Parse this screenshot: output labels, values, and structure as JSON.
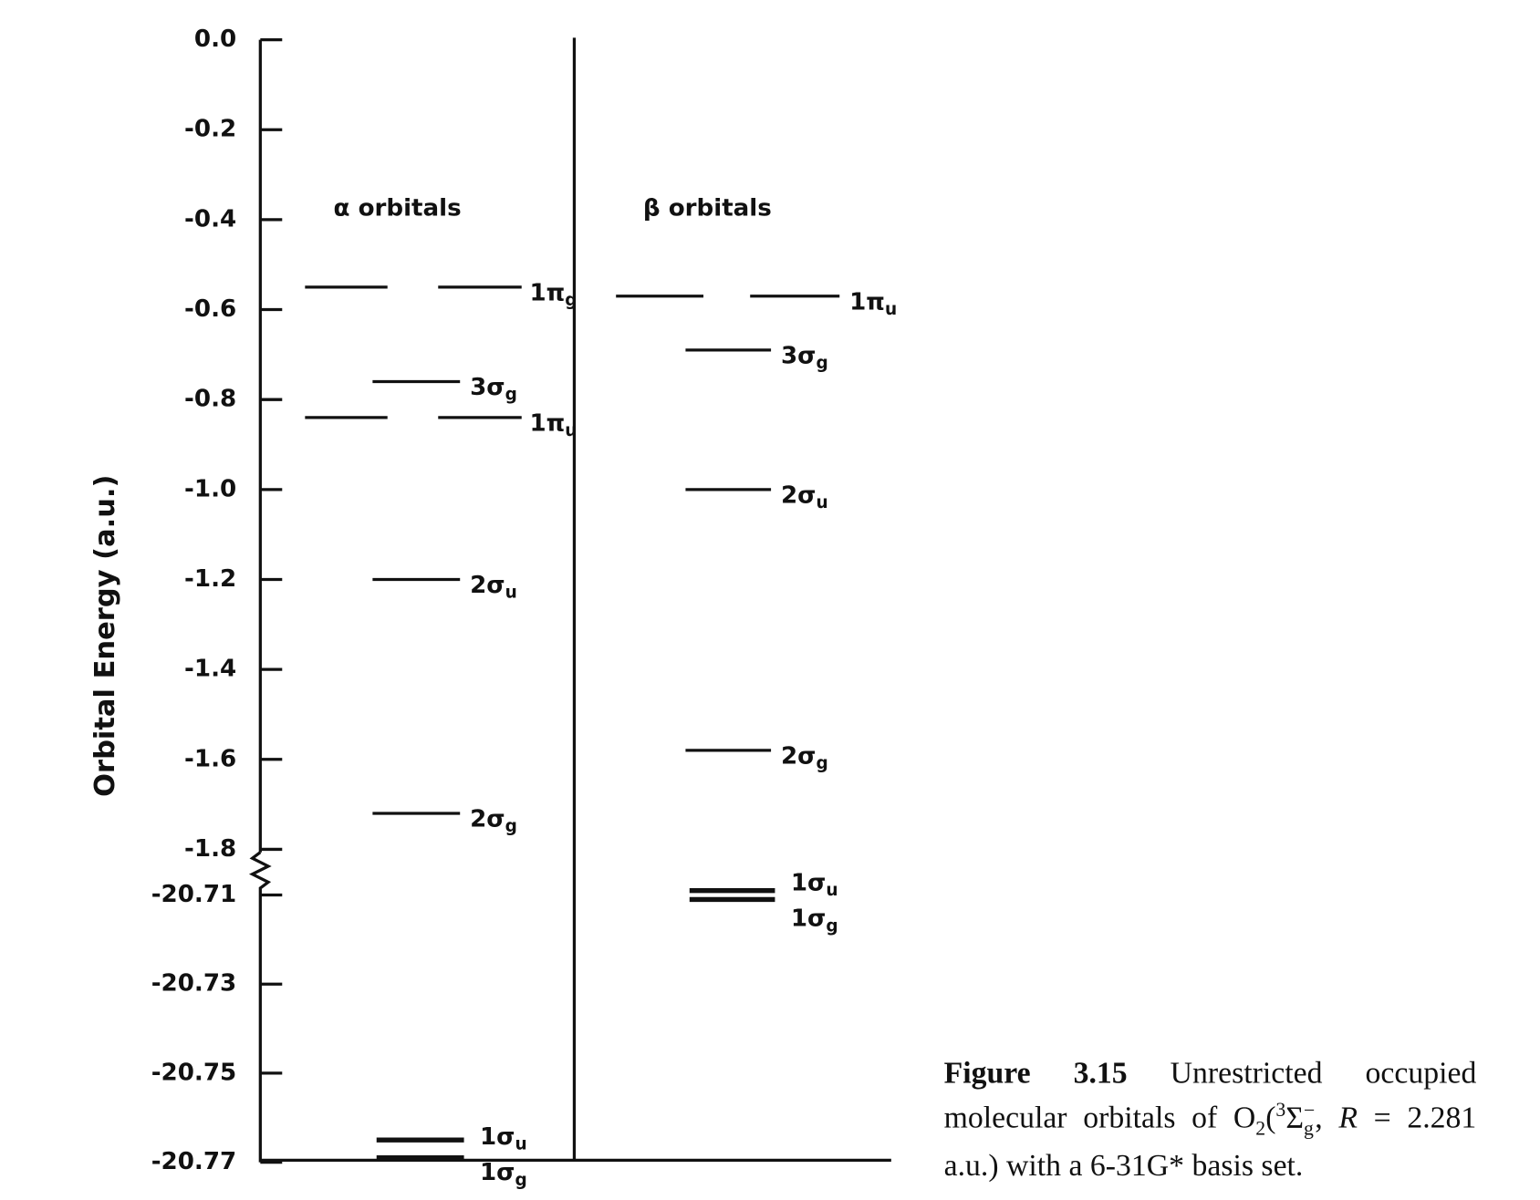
{
  "chart_data": {
    "type": "energy-level",
    "y_label": "Orbital Energy (a.u.)",
    "axis_break": true,
    "y_segments": [
      {
        "ylim": [
          -1.8,
          0
        ],
        "yticks": [
          {
            "value": 0,
            "label": "0.0"
          },
          -0.2,
          -0.4,
          -0.6,
          -0.8,
          {
            "value": -1,
            "label": "-1.0"
          },
          -1.2,
          -1.4,
          -1.6,
          -1.8
        ]
      },
      {
        "ylim": [
          -20.77,
          -20.71
        ],
        "yticks": [
          -20.71,
          -20.73,
          -20.75,
          -20.77
        ]
      }
    ],
    "series": [
      {
        "name": "α orbitals",
        "color": "#111111",
        "orbitals": [
          "1π",
          "3σ",
          "1π",
          "2σ",
          "2σ",
          "1σ",
          "1σ"
        ],
        "symmetry": [
          "g",
          "g",
          "u",
          "u",
          "g",
          "u",
          "g"
        ],
        "values": [
          -0.55,
          -0.76,
          -0.84,
          -1.2,
          -1.72,
          -20.765,
          -20.769
        ],
        "degenerate": [
          true,
          false,
          true,
          false,
          false,
          false,
          false
        ]
      },
      {
        "name": "β orbitals",
        "color": "#111111",
        "orbitals": [
          "1π",
          "3σ",
          "2σ",
          "2σ",
          "1σ",
          "1σ"
        ],
        "symmetry": [
          "u",
          "g",
          "u",
          "g",
          "u",
          "g"
        ],
        "values": [
          -0.57,
          -0.69,
          -1.0,
          -1.58,
          -20.709,
          -20.711
        ],
        "degenerate": [
          true,
          false,
          false,
          false,
          false,
          false
        ]
      }
    ],
    "caption": {
      "label": "Figure 3.15",
      "parts": [
        {
          "text": "Unrestricted occupied molecular orbitals of O"
        },
        {
          "text": "2",
          "style": "sub"
        },
        {
          "text": "("
        },
        {
          "text": "3",
          "style": "sup"
        },
        {
          "text": "Σ"
        },
        {
          "text": "g",
          "style": "sub"
        },
        {
          "text": "−",
          "style": "sup"
        },
        {
          "text": ", "
        },
        {
          "text": "R",
          "style": "italic"
        },
        {
          "text": " = 2.281 a.u.) with a 6-31G* basis set."
        }
      ]
    }
  }
}
